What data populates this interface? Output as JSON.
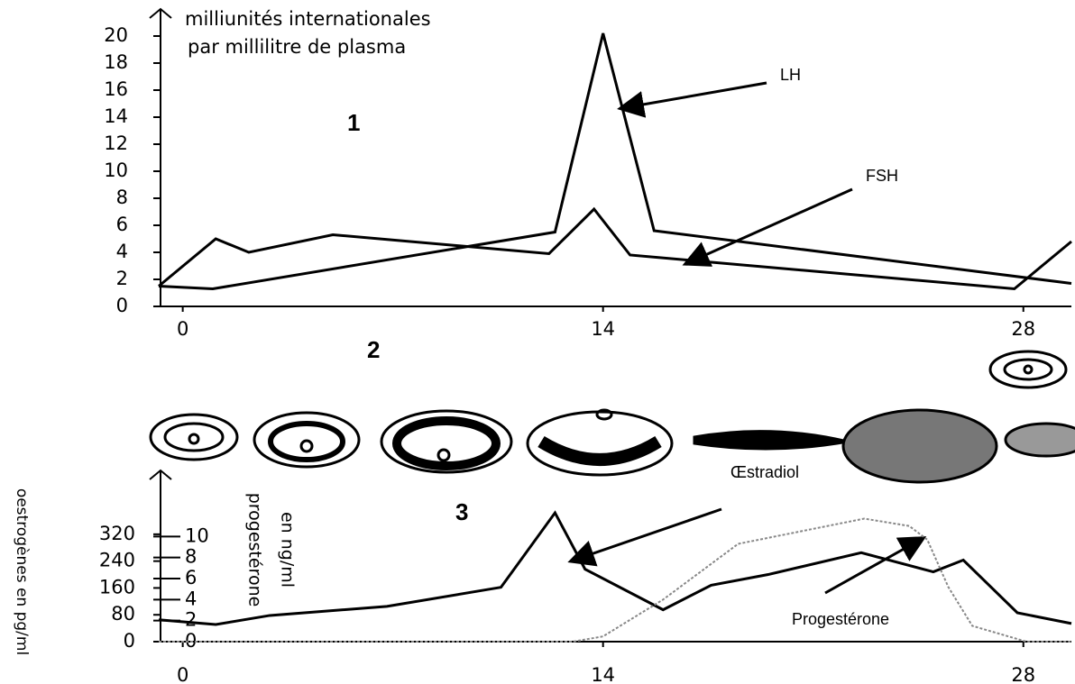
{
  "chart_data": [
    {
      "type": "line",
      "y_label_lines": [
        "milliunités internationales",
        "par millilitre de plasma"
      ],
      "xlim": [
        -0.8,
        29.6
      ],
      "xticks": [
        0,
        14,
        28
      ],
      "ylim": [
        0,
        21
      ],
      "yticks": [
        0,
        2,
        4,
        6,
        8,
        10,
        12,
        14,
        16,
        18,
        20
      ],
      "series": [
        {
          "name": "LH",
          "color": "#000000",
          "x": [
            -0.8,
            1,
            12.4,
            14,
            15.7,
            29.6
          ],
          "values": [
            1.5,
            1.3,
            5.5,
            20.2,
            5.6,
            1.7
          ]
        },
        {
          "name": "FSH",
          "color": "#000000",
          "x": [
            -0.8,
            1.1,
            2.2,
            5,
            12.2,
            13.7,
            14.9,
            27.7,
            29.6
          ],
          "values": [
            1.5,
            5,
            4,
            5.3,
            3.9,
            7.2,
            3.8,
            1.3,
            4.8
          ]
        }
      ],
      "annotations": [
        "1",
        "2"
      ]
    },
    {
      "type": "line",
      "y_label": "oestrogènes en pg/ml",
      "y2_label_lines": [
        "progestérone",
        "en ng/ml"
      ],
      "xlim": [
        -0.8,
        29.6
      ],
      "xticks": [
        0,
        14,
        28
      ],
      "ylim": [
        0,
        470
      ],
      "yticks": [
        0,
        80,
        160,
        240,
        320
      ],
      "y2lim": [
        0,
        15
      ],
      "y2ticks": [
        0,
        2,
        4,
        6,
        8,
        10
      ],
      "series": [
        {
          "name": "Œstradiol",
          "color": "#000000",
          "x": [
            -0.8,
            1.1,
            2.9,
            6.8,
            10.6,
            12.4,
            13.4,
            16,
            17.6,
            19.5,
            22.6,
            25,
            26,
            27.8,
            29.6
          ],
          "values": [
            65,
            51,
            78,
            105,
            162,
            384,
            216,
            95,
            168,
            200,
            265,
            208,
            243,
            86,
            54
          ]
        },
        {
          "name": "Progestérone",
          "color": "#888888",
          "axis": "y2",
          "x": [
            -0.8,
            13,
            14,
            16,
            18.5,
            22.7,
            24.2,
            24.8,
            25.5,
            26.3,
            28.1,
            29.6
          ],
          "values": [
            0,
            0,
            0.5,
            4,
            9.3,
            11.7,
            11,
            9.7,
            5.2,
            1.5,
            0,
            0
          ]
        }
      ],
      "annotations": [
        "3"
      ]
    }
  ]
}
